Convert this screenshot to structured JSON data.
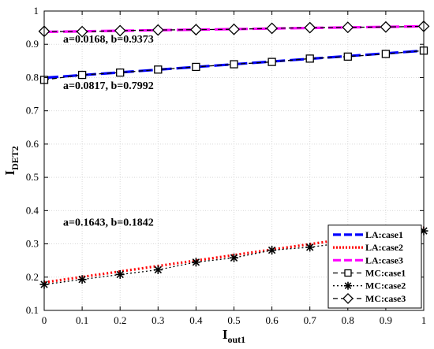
{
  "chart_data": {
    "type": "line",
    "xlabel": {
      "main": "I",
      "sub": "out1"
    },
    "ylabel": {
      "main": "I",
      "sub": "DET2"
    },
    "xlim": [
      0,
      1
    ],
    "ylim": [
      0.1,
      1
    ],
    "xticks": [
      0,
      0.1,
      0.2,
      0.3,
      0.4,
      0.5,
      0.6,
      0.7,
      0.8,
      0.9,
      1
    ],
    "yticks": [
      0.1,
      0.2,
      0.3,
      0.4,
      0.5,
      0.6,
      0.7,
      0.8,
      0.9,
      1
    ],
    "xtick_labels": [
      "0",
      "0.1",
      "0.2",
      "0.3",
      "0.4",
      "0.5",
      "0.6",
      "0.7",
      "0.8",
      "0.9",
      "1"
    ],
    "ytick_labels": [
      "0.1",
      "0.2",
      "0.3",
      "0.4",
      "0.5",
      "0.6",
      "0.7",
      "0.8",
      "0.9",
      "1"
    ],
    "grid": true,
    "legend_position": "bottom-right",
    "x": [
      0,
      0.1,
      0.2,
      0.3,
      0.4,
      0.5,
      0.6,
      0.7,
      0.8,
      0.9,
      1
    ],
    "series": [
      {
        "name": "LA:case1",
        "kind": "fit",
        "a": 0.0817,
        "b": 0.7992,
        "color": "#0000ff",
        "dash": "long"
      },
      {
        "name": "LA:case2",
        "kind": "fit",
        "a": 0.1643,
        "b": 0.1842,
        "color": "#ff0000",
        "dash": "dot"
      },
      {
        "name": "LA:case3",
        "kind": "fit",
        "a": 0.0168,
        "b": 0.9373,
        "color": "#ff00ff",
        "dash": "long"
      },
      {
        "name": "MC:case1",
        "kind": "mc",
        "marker": "square",
        "color": "#000000",
        "dash": "dash",
        "values": [
          0.793,
          0.808,
          0.815,
          0.824,
          0.832,
          0.84,
          0.847,
          0.857,
          0.863,
          0.871,
          0.881
        ]
      },
      {
        "name": "MC:case2",
        "kind": "mc",
        "marker": "star",
        "color": "#000000",
        "dash": "dot",
        "values": [
          0.178,
          0.193,
          0.208,
          0.222,
          0.245,
          0.258,
          0.281,
          0.29,
          0.305,
          0.322,
          0.339
        ]
      },
      {
        "name": "MC:case3",
        "kind": "mc",
        "marker": "diamond",
        "color": "#000000",
        "dash": "dash",
        "values": [
          0.939,
          0.938,
          0.941,
          0.943,
          0.944,
          0.945,
          0.948,
          0.95,
          0.951,
          0.952,
          0.954
        ]
      }
    ],
    "annotations": [
      {
        "text": "a=0.0168, b=0.9373",
        "x": 0.05,
        "y": 0.905
      },
      {
        "text": "a=0.0817, b=0.7992",
        "x": 0.05,
        "y": 0.765
      },
      {
        "text": "a=0.1643, b=0.1842",
        "x": 0.05,
        "y": 0.355
      }
    ]
  }
}
